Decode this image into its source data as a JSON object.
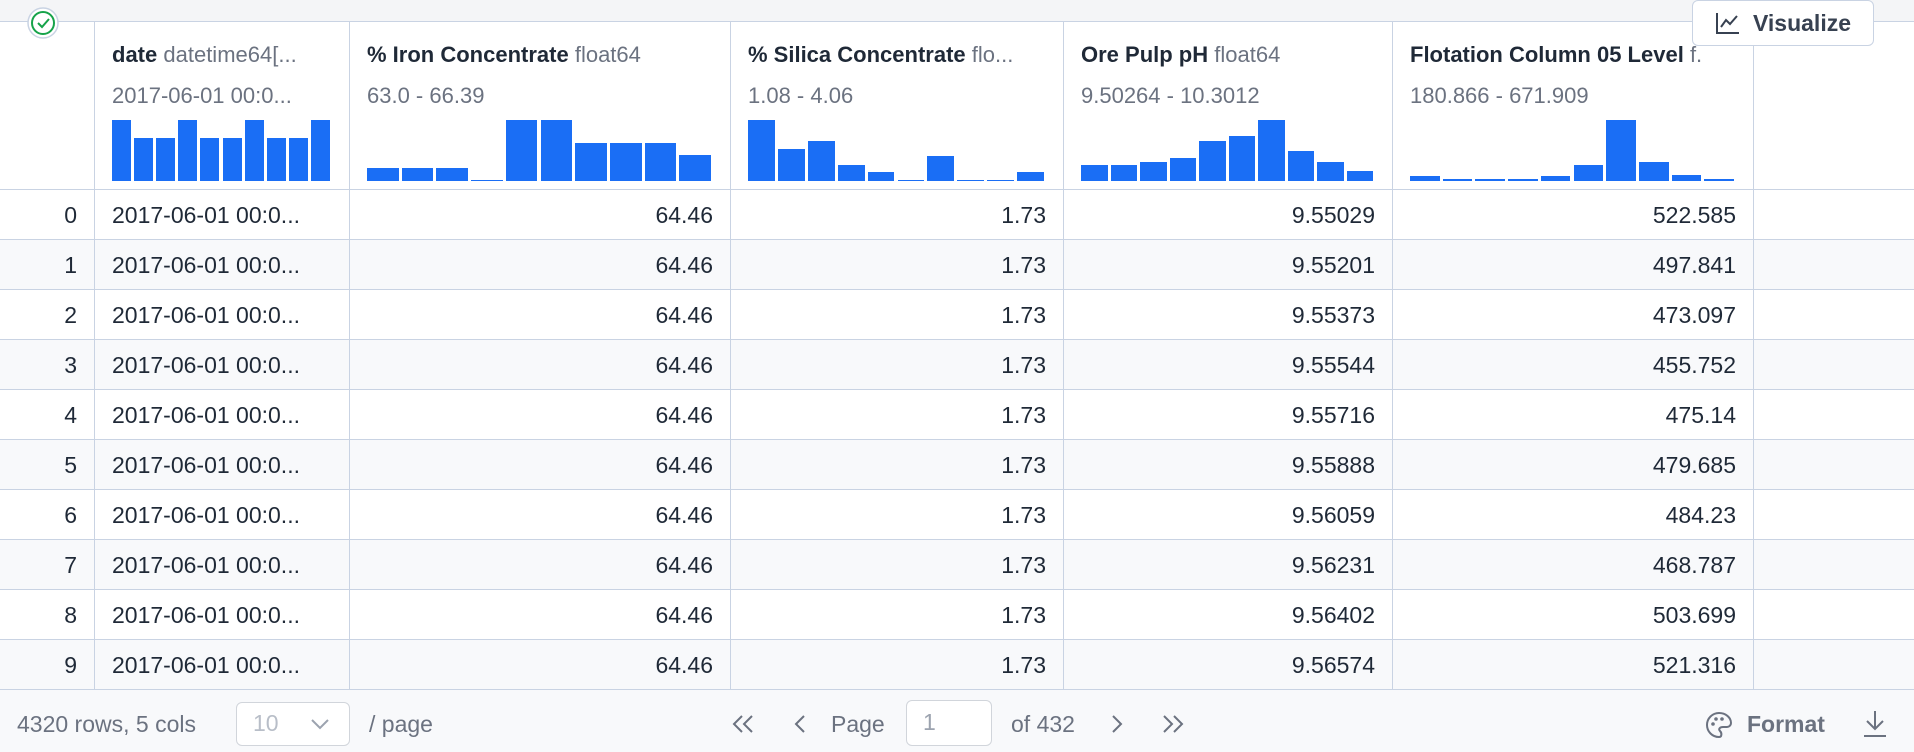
{
  "header": {
    "button": "Visualize"
  },
  "table": {
    "columns": [
      {
        "name": "date",
        "dtype": "datetime64[...",
        "range": "2017-06-01 00:0...",
        "histogram": [
          100,
          70,
          70,
          100,
          70,
          70,
          100,
          70,
          70,
          100
        ]
      },
      {
        "name": "% Iron Concentrate",
        "dtype": "float64",
        "range": "63.0 - 66.39",
        "histogram": [
          22,
          22,
          22,
          2,
          100,
          100,
          63,
          63,
          63,
          43
        ]
      },
      {
        "name": "% Silica Concentrate",
        "dtype": "flo...",
        "range": "1.08 - 4.06",
        "histogram": [
          100,
          53,
          65,
          27,
          14,
          2,
          41,
          2,
          2,
          14
        ]
      },
      {
        "name": "Ore Pulp pH",
        "dtype": "float64",
        "range": "9.50264 - 10.3012",
        "histogram": [
          27,
          27,
          31,
          37,
          65,
          73,
          100,
          49,
          31,
          16
        ]
      },
      {
        "name": "Flotation Column 05 Level",
        "dtype": "f.",
        "range": "180.866 - 671.909",
        "histogram": [
          8,
          4,
          4,
          4,
          8,
          27,
          100,
          31,
          10,
          4
        ]
      }
    ],
    "rows": [
      [
        0,
        "2017-06-01 00:0...",
        64.46,
        1.73,
        9.55029,
        522.585
      ],
      [
        1,
        "2017-06-01 00:0...",
        64.46,
        1.73,
        9.55201,
        497.841
      ],
      [
        2,
        "2017-06-01 00:0...",
        64.46,
        1.73,
        9.55373,
        473.097
      ],
      [
        3,
        "2017-06-01 00:0...",
        64.46,
        1.73,
        9.55544,
        455.752
      ],
      [
        4,
        "2017-06-01 00:0...",
        64.46,
        1.73,
        9.55716,
        475.14
      ],
      [
        5,
        "2017-06-01 00:0...",
        64.46,
        1.73,
        9.55888,
        479.685
      ],
      [
        6,
        "2017-06-01 00:0...",
        64.46,
        1.73,
        9.56059,
        484.23
      ],
      [
        7,
        "2017-06-01 00:0...",
        64.46,
        1.73,
        9.56231,
        468.787
      ],
      [
        8,
        "2017-06-01 00:0...",
        64.46,
        1.73,
        9.56402,
        503.699
      ],
      [
        9,
        "2017-06-01 00:0...",
        64.46,
        1.73,
        9.56574,
        521.316
      ]
    ]
  },
  "footer": {
    "summary": "4320 rows, 5 cols",
    "page_size": "10",
    "per_page": "/ page",
    "page_label": "Page",
    "page": "1",
    "of_pages": "of 432",
    "format": "Format"
  }
}
